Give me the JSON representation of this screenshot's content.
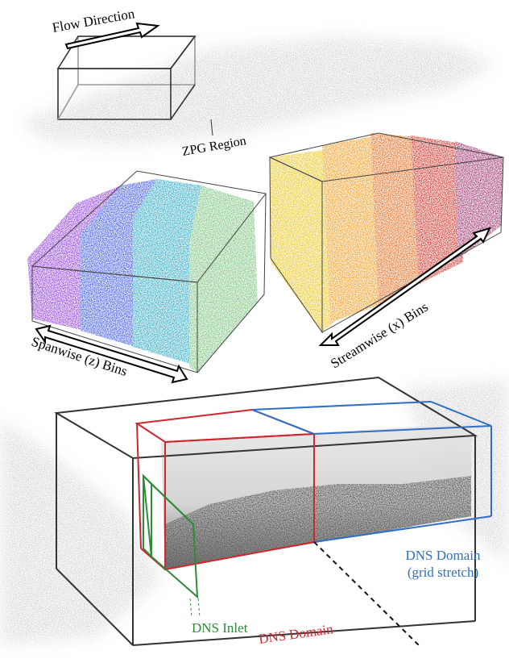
{
  "labels": {
    "flow_direction": "Flow Direction",
    "zpg_region": "ZPG Region",
    "spanwise_bins": "Spanwise (z) Bins",
    "streamwise_bins": "Streamwise (x) Bins",
    "dns_inlet": "DNS Inlet",
    "dns_domain": "DNS Domain",
    "dns_domain_stretch": {
      "line1": "DNS Domain",
      "line2": "(grid stretch)"
    }
  }
}
